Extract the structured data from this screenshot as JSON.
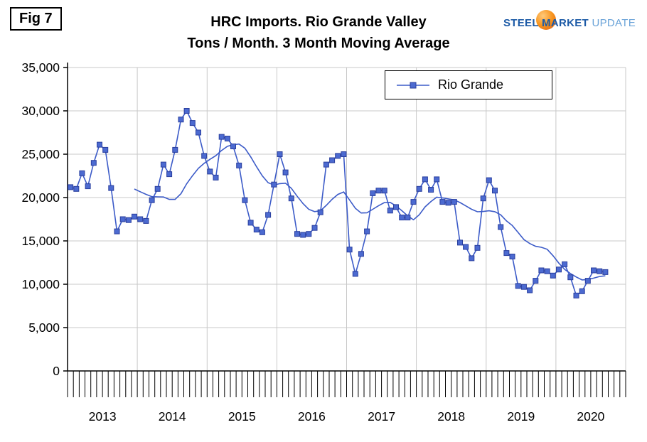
{
  "fig_label": "Fig 7",
  "title": {
    "line1": "HRC Imports. Rio Grande Valley",
    "line2": "Tons / Month. 3 Month Moving Average"
  },
  "logo": {
    "word1": "STEEL",
    "word2": "MARKET",
    "word3": "UPDATE"
  },
  "chart_data": {
    "type": "line",
    "title": "HRC Imports. Rio Grande Valley",
    "subtitle": "Tons / Month. 3 Month Moving Average",
    "legend_position": "top-center",
    "grid": true,
    "ylim": [
      0,
      35000
    ],
    "ytick_values": [
      0,
      5000,
      10000,
      15000,
      20000,
      25000,
      30000,
      35000
    ],
    "ytick_labels": [
      "0",
      "5,000",
      "10,000",
      "15,000",
      "20,000",
      "25,000",
      "30,000",
      "35,000"
    ],
    "years": [
      2013,
      2014,
      2015,
      2016,
      2017,
      2018,
      2019,
      2020
    ],
    "start_month": "2013-01",
    "total_months": 96,
    "series": [
      {
        "name": "Rio Grande",
        "values": [
          21200,
          21000,
          22800,
          21300,
          24000,
          26100,
          25500,
          21100,
          16100,
          17500,
          17400,
          17800,
          17500,
          17300,
          19700,
          21000,
          23800,
          22700,
          25500,
          29000,
          30000,
          28600,
          27500,
          24800,
          23000,
          22300,
          27000,
          26800,
          25900,
          23700,
          19700,
          17100,
          16300,
          16000,
          18000,
          21500,
          25000,
          22900,
          19900,
          15800,
          15700,
          15800,
          16500,
          18300,
          23800,
          24300,
          24800,
          25000,
          14000,
          11200,
          13500,
          16100,
          20500,
          20800,
          20800,
          18500,
          18900,
          17700,
          17700,
          19500,
          21000,
          22100,
          20900,
          22100,
          19500,
          19400,
          19500,
          14800,
          14300,
          13000,
          14200,
          19900,
          22000,
          20800,
          16600,
          13600,
          13200,
          9800,
          9700,
          9300,
          10400,
          11600,
          11500,
          11000,
          11700,
          12300,
          10800,
          8700,
          9200,
          10400,
          11600,
          11500,
          11400
        ]
      }
    ],
    "trend_line": {
      "style": "smooth moving average",
      "window_months": 12
    },
    "colors": {
      "series": "#3C5BC8",
      "marker_fill": "#4C6AD0",
      "marker_edge": "#2A3F9E",
      "grid": "#C8C8C8",
      "axis": "#000000"
    }
  }
}
